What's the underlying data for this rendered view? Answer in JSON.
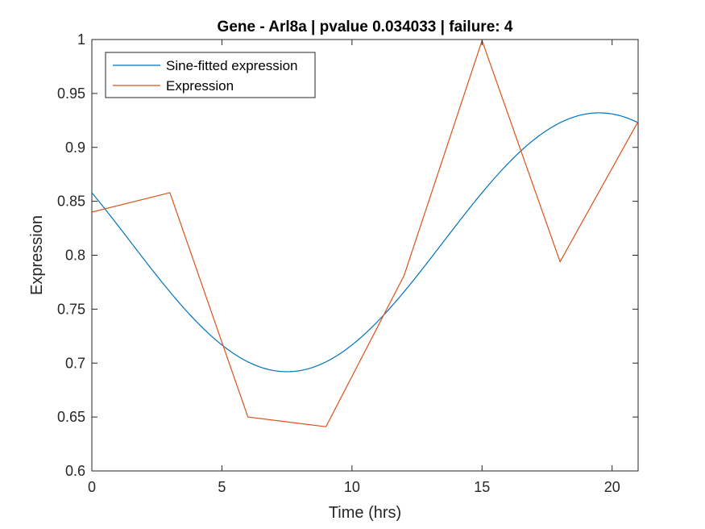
{
  "chart_data": {
    "type": "line",
    "title": "Gene - Arl8a | pvalue 0.034033 | failure: 4",
    "xlabel": "Time (hrs)",
    "ylabel": "Expression",
    "xlim": [
      0,
      21
    ],
    "ylim": [
      0.6,
      1.0
    ],
    "xticks": [
      0,
      5,
      10,
      15,
      20
    ],
    "xtick_labels": [
      "0",
      "5",
      "10",
      "15",
      "20"
    ],
    "yticks": [
      0.6,
      0.65,
      0.7,
      0.75,
      0.8,
      0.85,
      0.9,
      0.95,
      1.0
    ],
    "ytick_labels": [
      "0.6",
      "0.65",
      "0.7",
      "0.75",
      "0.8",
      "0.85",
      "0.9",
      "0.95",
      "1"
    ],
    "grid": false,
    "legend_position": "top-left",
    "series": [
      {
        "name": "Sine-fitted expression",
        "color": "#0072BD",
        "model": "sine",
        "mean": 0.812,
        "amplitude": 0.12,
        "minimum_at": 7.5,
        "period": 24
      },
      {
        "name": "Expression",
        "color": "#D95319",
        "x": [
          0,
          3,
          6,
          9,
          12,
          15,
          18,
          21
        ],
        "y": [
          0.84,
          0.858,
          0.65,
          0.641,
          0.781,
          0.999,
          0.794,
          0.924
        ]
      }
    ]
  }
}
